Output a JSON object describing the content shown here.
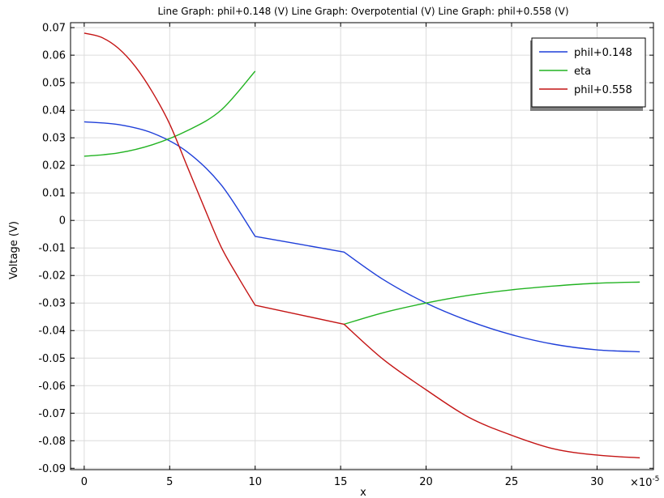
{
  "chart_data": {
    "type": "line",
    "title": "Line Graph: phil+0.148 (V)  Line Graph: Overpotential (V)  Line Graph: phil+0.558 (V)",
    "xlabel": "x",
    "ylabel": "Voltage (V)",
    "x_multiplier": "×10",
    "x_multiplier_exp": "-5",
    "xlim": [
      -0.8,
      33.3
    ],
    "ylim": [
      -0.0905,
      0.0718
    ],
    "grid": true,
    "legend_position": "top-right",
    "x_ticks": [
      0,
      5,
      10,
      15,
      20,
      25,
      30
    ],
    "x_tick_labels": [
      "0",
      "5",
      "10",
      "15",
      "20",
      "25",
      "30"
    ],
    "y_ticks": [
      0.07,
      0.06,
      0.05,
      0.04,
      0.03,
      0.02,
      0.01,
      0,
      -0.01,
      -0.02,
      -0.03,
      -0.04,
      -0.05,
      -0.06,
      -0.07,
      -0.08,
      -0.09
    ],
    "y_tick_labels": [
      "0.07",
      "0.06",
      "0.05",
      "0.04",
      "0.03",
      "0.02",
      "0.01",
      "0",
      "-0.01",
      "-0.02",
      "-0.03",
      "-0.04",
      "-0.05",
      "-0.06",
      "-0.07",
      "-0.08",
      "-0.09"
    ],
    "series": [
      {
        "name": "phil+0.148",
        "color": "#1f3fd9",
        "points": [
          [
            0,
            0.0358
          ],
          [
            2,
            0.0348
          ],
          [
            4,
            0.0317
          ],
          [
            6,
            0.025
          ],
          [
            8,
            0.013
          ],
          [
            10,
            -0.0058
          ],
          [
            15.2,
            -0.0115
          ],
          [
            17.5,
            -0.0215
          ],
          [
            20,
            -0.03
          ],
          [
            22.5,
            -0.0365
          ],
          [
            25,
            -0.0415
          ],
          [
            27.5,
            -0.045
          ],
          [
            30,
            -0.047
          ],
          [
            32.5,
            -0.0477
          ]
        ]
      },
      {
        "name": "eta",
        "color": "#22b322",
        "segments": [
          [
            [
              0,
              0.0233
            ],
            [
              2,
              0.0245
            ],
            [
              4,
              0.0275
            ],
            [
              6,
              0.0325
            ],
            [
              8,
              0.04
            ],
            [
              10,
              0.0542
            ]
          ],
          [
            [
              15.2,
              -0.0377
            ],
            [
              17.5,
              -0.0335
            ],
            [
              20,
              -0.03
            ],
            [
              22.5,
              -0.0272
            ],
            [
              25,
              -0.0252
            ],
            [
              27.5,
              -0.0238
            ],
            [
              30,
              -0.0228
            ],
            [
              32.5,
              -0.0224
            ]
          ]
        ]
      },
      {
        "name": "phil+0.558",
        "color": "#c41414",
        "points": [
          [
            0,
            0.068
          ],
          [
            1,
            0.0665
          ],
          [
            2,
            0.0625
          ],
          [
            3,
            0.0558
          ],
          [
            4,
            0.0465
          ],
          [
            5,
            0.035
          ],
          [
            6,
            0.02
          ],
          [
            7,
            0.005
          ],
          [
            8,
            -0.0095
          ],
          [
            9,
            -0.0205
          ],
          [
            10,
            -0.0308
          ],
          [
            15.2,
            -0.0377
          ],
          [
            17.5,
            -0.0505
          ],
          [
            20,
            -0.0615
          ],
          [
            22.5,
            -0.0715
          ],
          [
            25,
            -0.078
          ],
          [
            27.5,
            -0.083
          ],
          [
            30,
            -0.0852
          ],
          [
            32.5,
            -0.0862
          ]
        ]
      }
    ]
  }
}
